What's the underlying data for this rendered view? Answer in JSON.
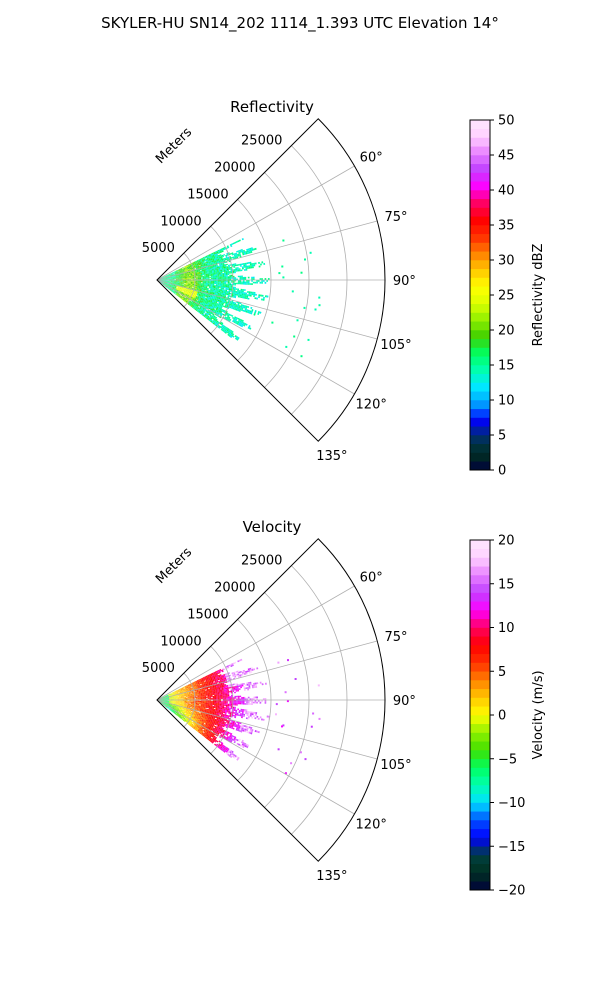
{
  "title": "SKYLER-HU  SN14_202  1114_1.393 UTC Elevation 14°",
  "chart_data": [
    {
      "type": "heatmap",
      "title": "Reflectivity",
      "radial_label": "Meters",
      "radial_ticks": [
        5000,
        10000,
        15000,
        20000,
        25000
      ],
      "radial_tick_labels": [
        "5000",
        "10000",
        "15000",
        "20000",
        "25000"
      ],
      "rlim": [
        0,
        30000
      ],
      "azimuth_range_deg": [
        45,
        135
      ],
      "azimuth_ticks": [
        60,
        75,
        90,
        105,
        120,
        135
      ],
      "azimuth_tick_labels": [
        "60°",
        "75°",
        "90°",
        "105°",
        "120°",
        "135°"
      ],
      "grid": true,
      "colorbar": {
        "label": "Reflectivity dBZ",
        "range": [
          0,
          50
        ],
        "ticks": [
          0,
          5,
          10,
          15,
          20,
          25,
          30,
          35,
          40,
          45,
          50
        ],
        "tick_labels": [
          "0",
          "5",
          "10",
          "15",
          "20",
          "25",
          "30",
          "35",
          "40",
          "45",
          "50"
        ]
      },
      "echo": {
        "max_range_m": 15500,
        "azimuth_extent_deg": [
          64,
          128
        ],
        "typical_value": 15,
        "peak_value": 26
      }
    },
    {
      "type": "heatmap",
      "title": "Velocity",
      "radial_label": "Meters",
      "radial_ticks": [
        5000,
        10000,
        15000,
        20000,
        25000
      ],
      "radial_tick_labels": [
        "5000",
        "10000",
        "15000",
        "20000",
        "25000"
      ],
      "rlim": [
        0,
        30000
      ],
      "azimuth_range_deg": [
        45,
        135
      ],
      "azimuth_ticks": [
        60,
        75,
        90,
        105,
        120,
        135
      ],
      "azimuth_tick_labels": [
        "60°",
        "75°",
        "90°",
        "105°",
        "120°",
        "135°"
      ],
      "grid": true,
      "colorbar": {
        "label": "Velocity (m/s)",
        "range": [
          -20,
          20
        ],
        "ticks": [
          -20,
          -15,
          -10,
          -5,
          0,
          5,
          10,
          15,
          20
        ],
        "tick_labels": [
          "−20",
          "−15",
          "−10",
          "−5",
          "0",
          "5",
          "10",
          "15",
          "20"
        ]
      },
      "echo": {
        "max_range_m": 15500,
        "azimuth_extent_deg": [
          64,
          128
        ],
        "near_value": -6,
        "far_value": 13
      }
    }
  ],
  "colors": {
    "reflectivity_stops": [
      "#00003c",
      "#003020",
      "#00306a",
      "#0000ff",
      "#00a0ff",
      "#00e8ff",
      "#00ffb0",
      "#00ff60",
      "#40d000",
      "#90f000",
      "#ddff00",
      "#ffff00",
      "#ffc800",
      "#ff8000",
      "#ff3000",
      "#ff0000",
      "#ff0060",
      "#ff00ff",
      "#c040ff",
      "#e880ff",
      "#ffd0ff",
      "#ffe8ff"
    ],
    "velocity_stops": [
      "#00003c",
      "#003020",
      "#004040",
      "#0000ff",
      "#0050ff",
      "#00e0ff",
      "#00ffb0",
      "#00ff60",
      "#40e000",
      "#90f000",
      "#ffff00",
      "#ffc800",
      "#ff8000",
      "#ff3000",
      "#ff0000",
      "#ff0060",
      "#ff00ff",
      "#c040ff",
      "#e880ff",
      "#ffd0ff",
      "#ffe8ff"
    ]
  }
}
